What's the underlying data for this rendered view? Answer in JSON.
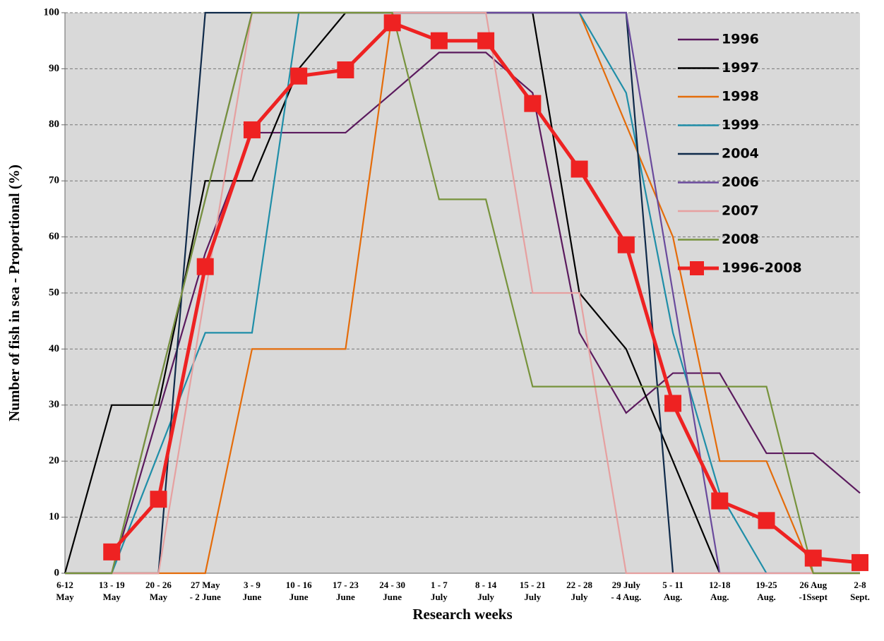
{
  "chart_data": {
    "type": "line",
    "x_label": "Research weeks",
    "y_label": "Number of fish in sea - Proportional (%)",
    "categories": [
      [
        "6-12",
        "May"
      ],
      [
        "13 - 19",
        "May"
      ],
      [
        "20 - 26",
        "May"
      ],
      [
        "27 May",
        "- 2 June"
      ],
      [
        "3 - 9",
        "June"
      ],
      [
        "10 - 16",
        "June"
      ],
      [
        "17 - 23",
        "June"
      ],
      [
        "24 - 30",
        "June"
      ],
      [
        "1 - 7",
        "July"
      ],
      [
        "8 - 14",
        "July"
      ],
      [
        "15 - 21",
        "July"
      ],
      [
        "22 - 28",
        "July"
      ],
      [
        "29 July",
        "- 4 Aug."
      ],
      [
        "5 - 11",
        "Aug."
      ],
      [
        "12-18",
        "Aug."
      ],
      [
        "19-25",
        "Aug."
      ],
      [
        "26 Aug",
        "-1Ssept"
      ],
      [
        "2-8",
        "Sept."
      ]
    ],
    "ylim": [
      0,
      100
    ],
    "yticks": [
      0,
      10,
      20,
      30,
      40,
      50,
      60,
      70,
      80,
      90,
      100
    ],
    "grid": true,
    "legend": "upper-right",
    "series": [
      {
        "name": "1996",
        "color": "#5b1a5e",
        "values": [
          0,
          0,
          28.6,
          57.1,
          78.6,
          78.6,
          78.6,
          85.7,
          92.9,
          92.9,
          85.7,
          42.9,
          28.6,
          35.7,
          35.7,
          21.4,
          21.4,
          14.3
        ]
      },
      {
        "name": "1997",
        "color": "#000000",
        "values": [
          0,
          30,
          30,
          70,
          70,
          90,
          100,
          100,
          100,
          100,
          100,
          50,
          40,
          20,
          0,
          null,
          null,
          null
        ]
      },
      {
        "name": "1998",
        "color": "#e46c0a",
        "values": [
          0,
          0,
          0,
          0,
          40,
          40,
          40,
          100,
          100,
          100,
          100,
          100,
          80,
          60,
          20,
          20,
          0,
          0
        ]
      },
      {
        "name": "1999",
        "color": "#1f8ea8",
        "values": [
          0,
          0,
          21.4,
          42.9,
          42.9,
          100,
          100,
          100,
          100,
          100,
          100,
          100,
          85.7,
          42.9,
          14.3,
          0,
          null,
          null
        ]
      },
      {
        "name": "2004",
        "color": "#0f2a4a",
        "values": [
          0,
          0,
          0,
          100,
          100,
          100,
          100,
          100,
          100,
          100,
          100,
          100,
          100,
          0,
          null,
          null,
          null,
          null
        ]
      },
      {
        "name": "2006",
        "color": "#6a4a9c",
        "values": [
          0,
          0,
          33.3,
          66.7,
          100,
          100,
          100,
          100,
          100,
          100,
          100,
          100,
          100,
          50,
          0,
          0,
          0,
          0
        ]
      },
      {
        "name": "2007",
        "color": "#e6a0a0",
        "values": [
          0,
          0,
          0,
          50,
          100,
          100,
          100,
          100,
          100,
          100,
          50,
          50,
          0,
          0,
          0,
          0,
          0,
          0
        ]
      },
      {
        "name": "2008",
        "color": "#77933c",
        "values": [
          0,
          0,
          33.3,
          66.7,
          100,
          100,
          100,
          100,
          66.7,
          66.7,
          33.3,
          33.3,
          33.3,
          33.3,
          33.3,
          33.3,
          0,
          0
        ]
      },
      {
        "name": "1996-2008",
        "color": "#ee2222",
        "marker": "square",
        "values": [
          null,
          3.8,
          13.2,
          54.7,
          79.1,
          88.7,
          89.8,
          98.2,
          95,
          95,
          83.8,
          72.1,
          58.6,
          30.3,
          12.9,
          9.4,
          2.7,
          1.9
        ]
      }
    ]
  }
}
